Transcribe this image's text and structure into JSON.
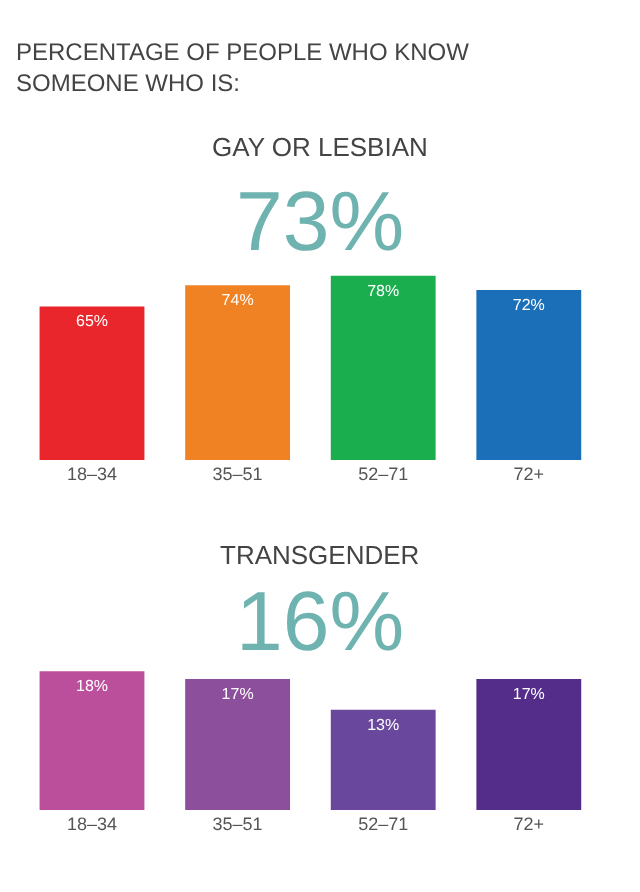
{
  "chart_data": [
    {
      "type": "bar",
      "title": "PERCENTAGE OF PEOPLE WHO KNOW SOMEONE WHO IS:",
      "subtitle": "GAY OR LESBIAN",
      "annotations": [
        "73%"
      ],
      "categories": [
        "18–34",
        "35–51",
        "52–71",
        "72+"
      ],
      "values": [
        65,
        74,
        78,
        72
      ],
      "colors": [
        "#e8262b",
        "#f08224",
        "#1aae4f",
        "#1b6fb8"
      ],
      "value_labels": [
        "65%",
        "74%",
        "78%",
        "72%"
      ]
    },
    {
      "type": "bar",
      "subtitle": "TRANSGENDER",
      "annotations": [
        "16%"
      ],
      "categories": [
        "18–34",
        "35–51",
        "52–71",
        "72+"
      ],
      "values": [
        18,
        17,
        13,
        17
      ],
      "colors": [
        "#bb4f9b",
        "#8c4f9c",
        "#69479c",
        "#542d8a"
      ],
      "value_labels": [
        "18%",
        "17%",
        "13%",
        "17%"
      ]
    }
  ]
}
